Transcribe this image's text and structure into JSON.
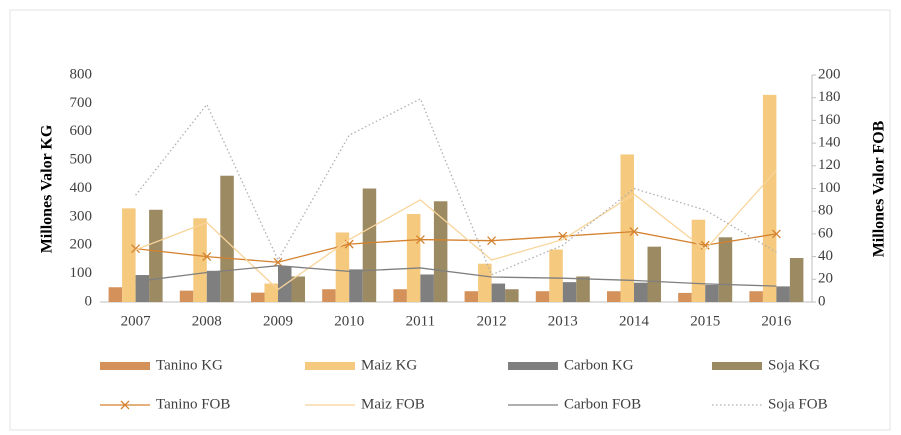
{
  "chart_data": {
    "type": "bar",
    "ylabel": "Millones Valor KG",
    "y2label": "Millones Valor FOB",
    "categories": [
      "2007",
      "2008",
      "2009",
      "2010",
      "2011",
      "2012",
      "2013",
      "2014",
      "2015",
      "2016"
    ],
    "ylim": [
      0,
      800
    ],
    "yticks": [
      0,
      100,
      200,
      300,
      400,
      500,
      600,
      700,
      800
    ],
    "y2lim": [
      0,
      200
    ],
    "y2ticks": [
      0,
      20,
      40,
      60,
      80,
      100,
      120,
      140,
      160,
      180,
      200
    ],
    "grid": false,
    "series": [
      {
        "name": "Tanino KG",
        "type": "bar",
        "color": "#d4915a",
        "values": [
          52,
          40,
          33,
          45,
          45,
          38,
          38,
          38,
          32,
          38
        ]
      },
      {
        "name": "Maiz KG",
        "type": "bar",
        "color": "#f5c97e",
        "values": [
          330,
          295,
          65,
          245,
          310,
          135,
          185,
          520,
          290,
          730
        ]
      },
      {
        "name": "Carbon KG",
        "type": "bar",
        "color": "#7f7f7f",
        "values": [
          95,
          110,
          125,
          115,
          97,
          65,
          70,
          68,
          60,
          55
        ]
      },
      {
        "name": "Soja KG",
        "type": "bar",
        "color": "#9c8a63",
        "values": [
          325,
          445,
          90,
          400,
          355,
          45,
          90,
          195,
          228,
          155
        ]
      },
      {
        "name": "Tanino FOB",
        "type": "line",
        "axis": "y2",
        "marker": "x",
        "color": "#d4822f",
        "values": [
          47,
          40,
          35,
          51,
          55,
          54,
          58,
          62,
          50,
          60
        ]
      },
      {
        "name": "Maiz FOB",
        "type": "line",
        "axis": "y2",
        "color": "#f8d49a",
        "values": [
          46,
          70,
          11,
          55,
          90,
          37,
          55,
          95,
          46,
          116
        ]
      },
      {
        "name": "Carbon FOB",
        "type": "line",
        "axis": "y2",
        "color": "#7f7f7f",
        "values": [
          18,
          26,
          32,
          27,
          30,
          22,
          21,
          19,
          16,
          14
        ]
      },
      {
        "name": "Soja FOB",
        "type": "line",
        "axis": "y2",
        "dash": "dotted",
        "color": "#b0b0b0",
        "values": [
          94,
          174,
          37,
          147,
          179,
          24,
          50,
          100,
          81,
          44
        ]
      }
    ]
  }
}
